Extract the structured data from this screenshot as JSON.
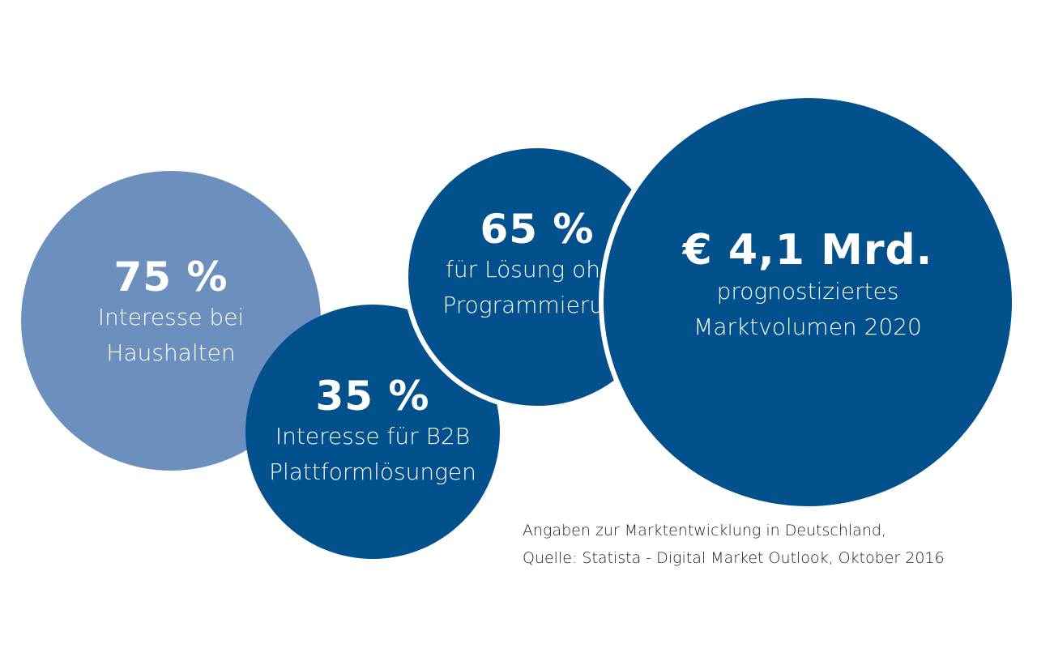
{
  "bubbles": [
    {
      "value": "75 %",
      "label_line1": "Interesse bei",
      "label_line2": "Haushalten",
      "color": "#6c8fbd"
    },
    {
      "value": "35 %",
      "label_line1": "Interesse für B2B",
      "label_line2": "Plattformlösungen",
      "color": "#02508c"
    },
    {
      "value": "65 %",
      "label_line1": "für Lösung ohne",
      "label_line2": "Programmierung",
      "color": "#02508c"
    },
    {
      "value": "€ 4,1 Mrd.",
      "label_line1": "prognostiziertes",
      "label_line2": "Marktvolumen 2020",
      "color": "#02508c"
    }
  ],
  "source": {
    "line1": "Angaben zur Marktentwicklung in Deutschland,",
    "line2": "Quelle: Statista - Digital Market Outlook, Oktober 2016"
  }
}
